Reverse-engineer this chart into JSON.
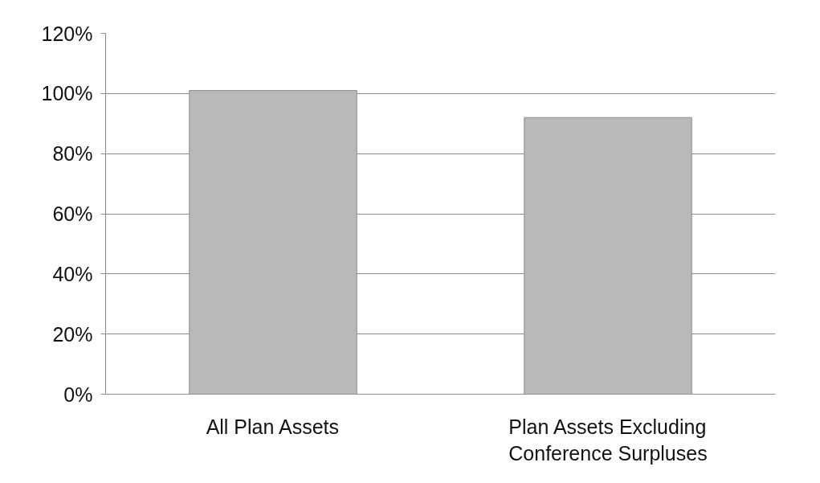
{
  "chart_data": {
    "type": "bar",
    "categories": [
      "All Plan Assets",
      "Plan Assets Excluding\nConference Surpluses"
    ],
    "values": [
      101,
      92
    ],
    "color": "#b9b9b9",
    "ylim": [
      0,
      120
    ],
    "yticks": [
      {
        "value": 0,
        "label": "0%"
      },
      {
        "value": 20,
        "label": "20%"
      },
      {
        "value": 40,
        "label": "40%"
      },
      {
        "value": 60,
        "label": "60%"
      },
      {
        "value": 80,
        "label": "80%"
      },
      {
        "value": 100,
        "label": "100%"
      },
      {
        "value": 120,
        "label": "120%"
      }
    ],
    "grid": "y"
  }
}
